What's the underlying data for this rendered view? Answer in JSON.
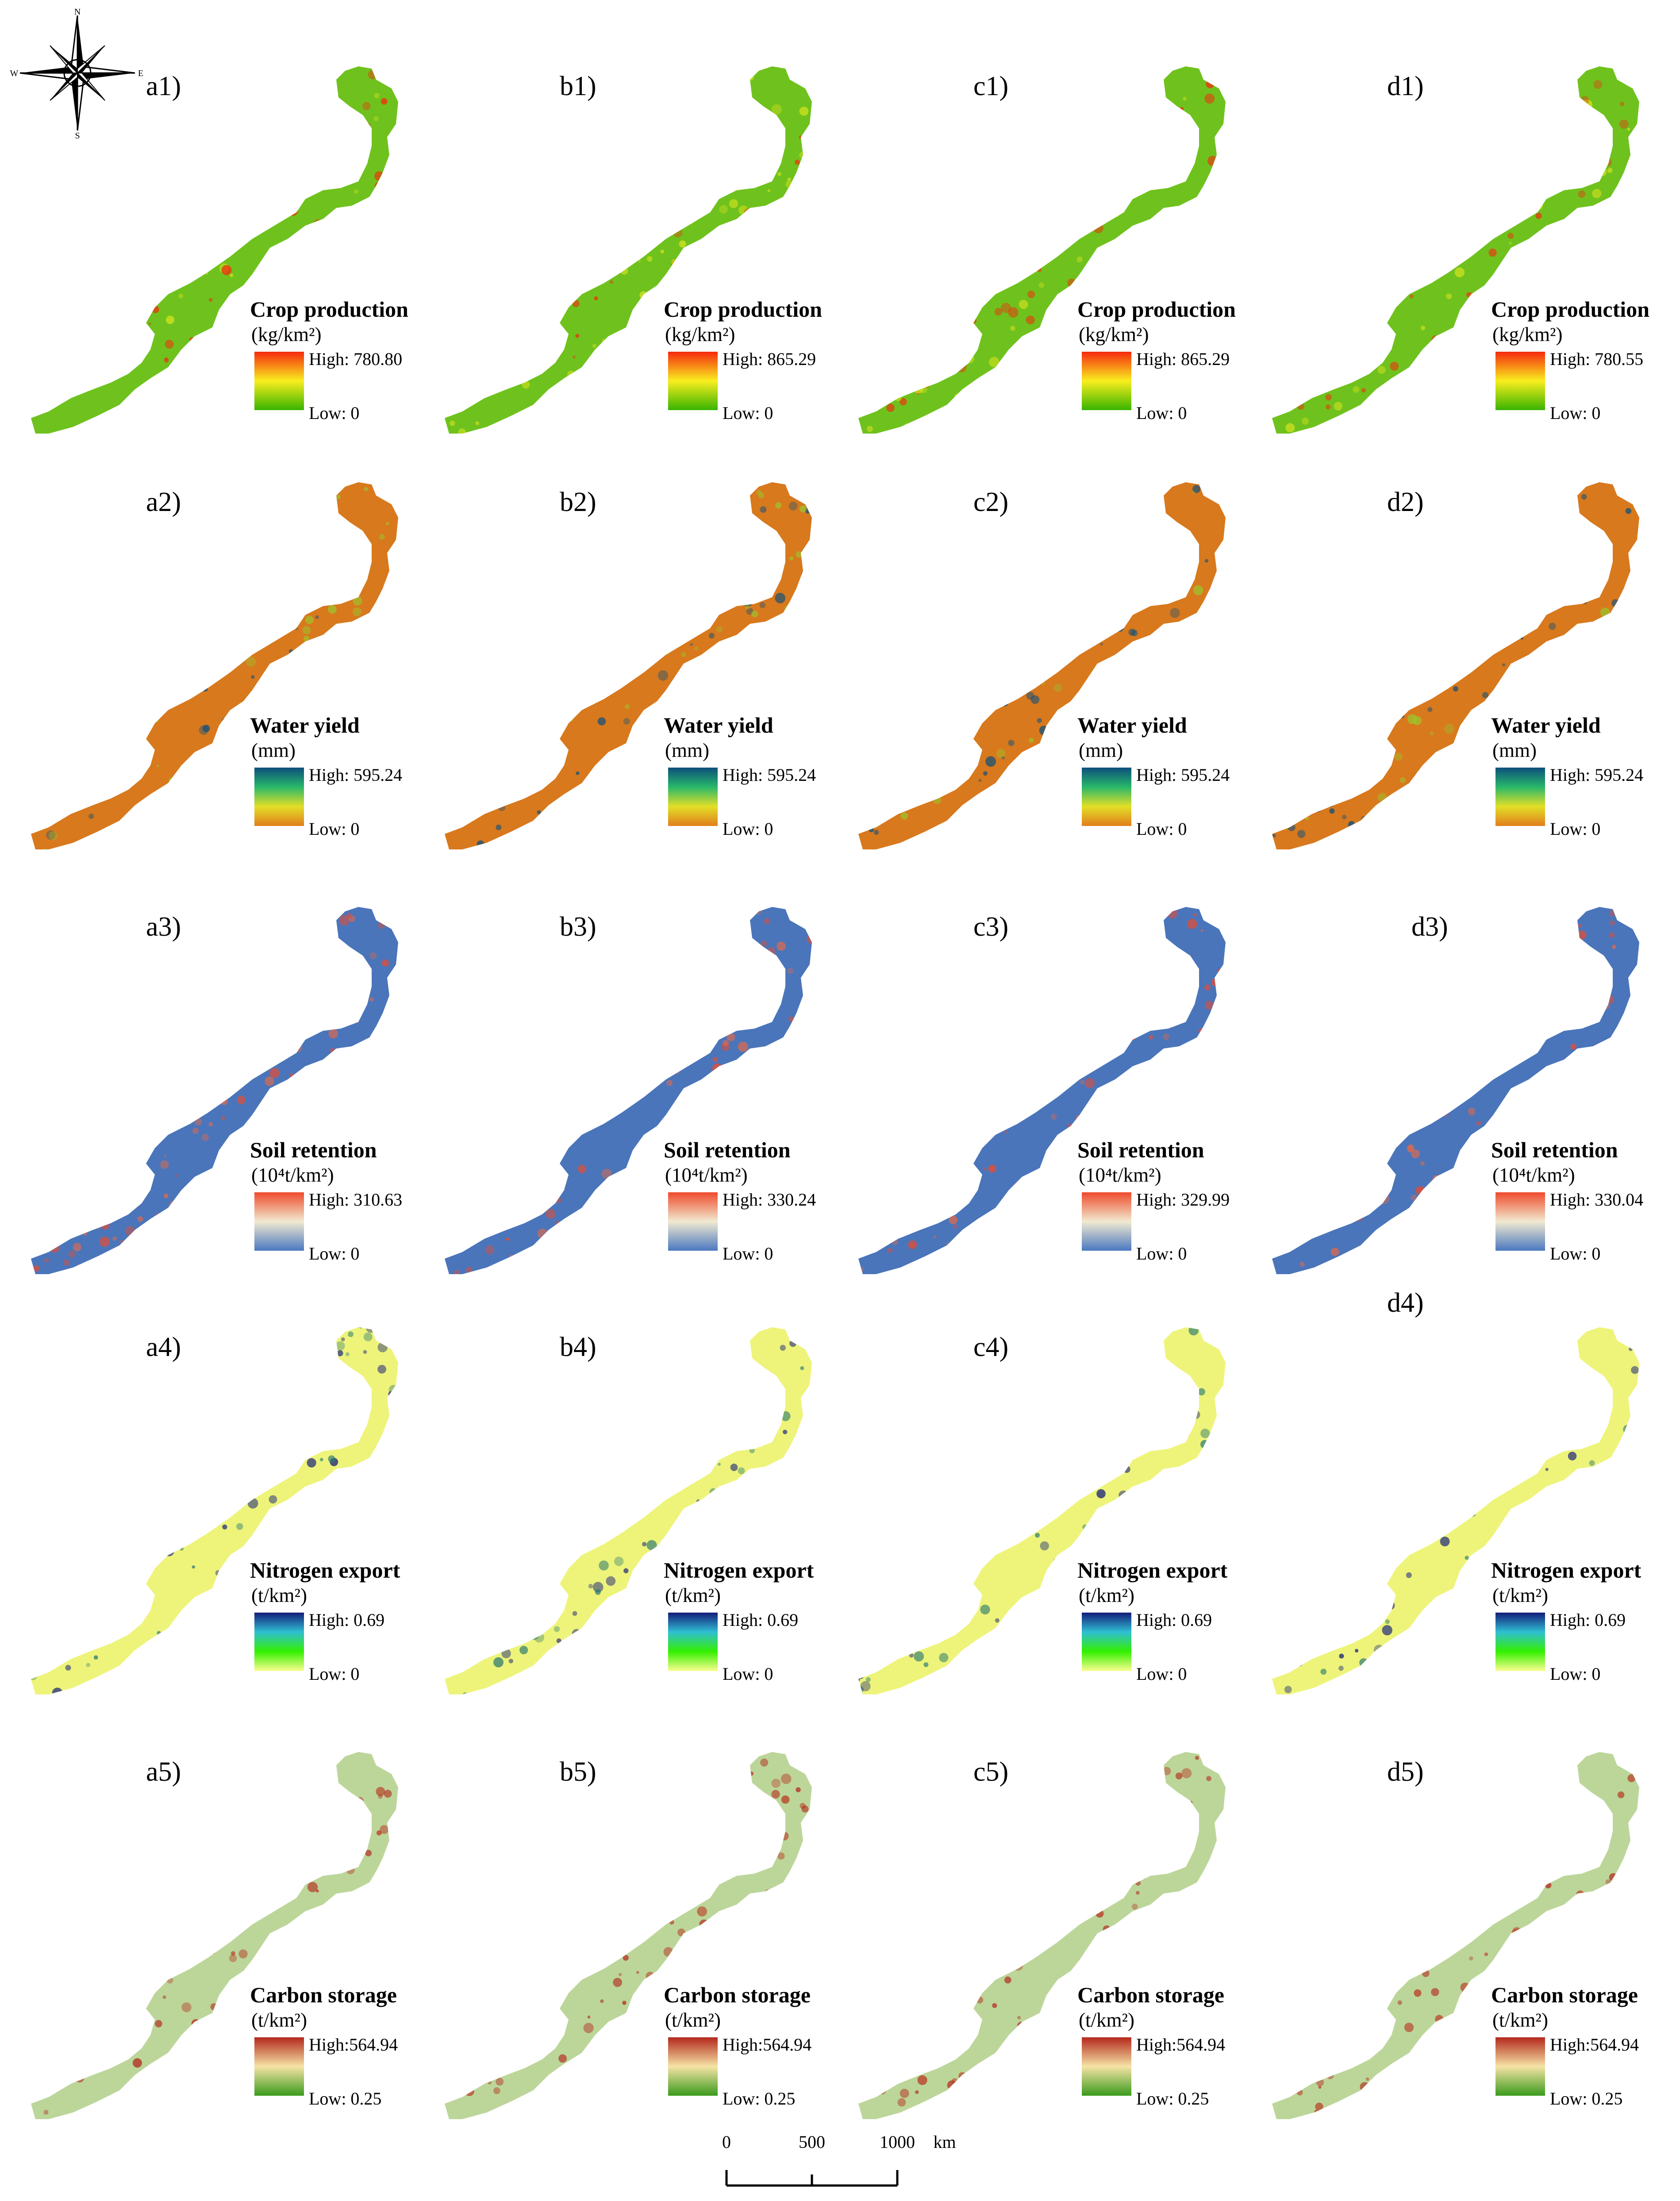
{
  "compass": {
    "n": "N",
    "s": "S",
    "e": "E",
    "w": "W"
  },
  "scale_bar": {
    "ticks": [
      "0",
      "500",
      "1000"
    ],
    "unit": "km"
  },
  "rows": [
    {
      "title": "Crop production",
      "unit": "(kg/km²)",
      "colors": [
        "#f52a0e",
        "#f9ee1e",
        "#38b400"
      ],
      "base": "#6fc21d",
      "speck": "#d9e21f",
      "panels": [
        {
          "label": "a1)",
          "high": "High: 780.80",
          "low": "Low: 0"
        },
        {
          "label": "b1)",
          "high": "High: 865.29",
          "low": "Low: 0"
        },
        {
          "label": "c1)",
          "high": "High: 865.29",
          "low": "Low: 0"
        },
        {
          "label": "d1)",
          "high": "High: 780.55",
          "low": "Low: 0"
        }
      ]
    },
    {
      "title": "Water yield",
      "unit": "(mm)",
      "colors": [
        "#0d4f7d",
        "#28b86a",
        "#e2df27",
        "#e07e1d"
      ],
      "base": "#d8791d",
      "speck": "#9cc42c",
      "panels": [
        {
          "label": "a2)",
          "high": "High: 595.24",
          "low": "Low: 0"
        },
        {
          "label": "b2)",
          "high": "High: 595.24",
          "low": "Low: 0"
        },
        {
          "label": "c2)",
          "high": "High: 595.24",
          "low": "Low: 0"
        },
        {
          "label": "d2)",
          "high": "High: 595.24",
          "low": "Low: 0"
        }
      ]
    },
    {
      "title": "Soil retention",
      "unit": "(10⁴t/km²)",
      "colors": [
        "#ef4a2c",
        "#f1ead0",
        "#4a78c0"
      ],
      "base": "#4a75ba",
      "speck": "#e16a4c",
      "panels": [
        {
          "label": "a3)",
          "high": "High: 310.63",
          "low": "Low: 0"
        },
        {
          "label": "b3)",
          "high": "High: 330.24",
          "low": "Low: 0"
        },
        {
          "label": "c3)",
          "high": "High: 329.99",
          "low": "Low: 0"
        },
        {
          "label": "d3)",
          "high": "High: 330.04",
          "low": "Low: 0"
        }
      ]
    },
    {
      "title": "Nitrogen export",
      "unit": "(t/km²)",
      "colors": [
        "#141d7a",
        "#2fbfd3",
        "#33f000",
        "#fbfd90"
      ],
      "base": "#eef47a",
      "speck": "#2b7a70",
      "panels": [
        {
          "label": "a4)",
          "high": "High: 0.69",
          "low": "Low: 0"
        },
        {
          "label": "b4)",
          "high": "High: 0.69",
          "low": "Low: 0"
        },
        {
          "label": "c4)",
          "high": "High: 0.69",
          "low": "Low: 0"
        },
        {
          "label": "d4)",
          "high": "High: 0.69",
          "low": "Low: 0"
        }
      ]
    },
    {
      "title": "Carbon storage",
      "unit": "(t/km²)",
      "colors": [
        "#b3281c",
        "#f6e3a6",
        "#3a9a1c"
      ],
      "base": "#bcd69a",
      "speck": "#b8321e",
      "panels": [
        {
          "label": "a5)",
          "high": "High:564.94",
          "low": "Low: 0.25"
        },
        {
          "label": "b5)",
          "high": "High:564.94",
          "low": "Low: 0.25"
        },
        {
          "label": "c5)",
          "high": "High:564.94",
          "low": "Low: 0.25"
        },
        {
          "label": "d5)",
          "high": "High:564.94",
          "low": "Low: 0.25"
        }
      ]
    }
  ]
}
